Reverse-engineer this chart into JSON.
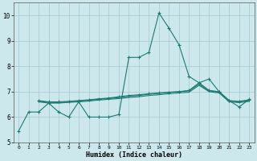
{
  "xlabel": "Humidex (Indice chaleur)",
  "xlim": [
    -0.5,
    23.5
  ],
  "ylim": [
    5.0,
    10.5
  ],
  "yticks": [
    5,
    6,
    7,
    8,
    9,
    10
  ],
  "xticks": [
    0,
    1,
    2,
    3,
    4,
    5,
    6,
    7,
    8,
    9,
    10,
    11,
    12,
    13,
    14,
    15,
    16,
    17,
    18,
    19,
    20,
    21,
    22,
    23
  ],
  "bg_color": "#cce8ec",
  "grid_color": "#aacdd4",
  "line_color": "#1b7b72",
  "line1_x": [
    0,
    1,
    2,
    3,
    4,
    5,
    6,
    7,
    8,
    9,
    10,
    11,
    12,
    13,
    14,
    15,
    16,
    17,
    18,
    19,
    20,
    21,
    22,
    23
  ],
  "line1_y": [
    5.45,
    6.2,
    6.2,
    6.55,
    6.2,
    6.0,
    6.6,
    6.0,
    6.0,
    6.0,
    6.1,
    8.35,
    8.35,
    8.55,
    10.1,
    9.5,
    8.85,
    7.6,
    7.35,
    7.5,
    7.0,
    6.65,
    6.4,
    6.7
  ],
  "line2_x": [
    2,
    3,
    4,
    5,
    6,
    7,
    8,
    9,
    10,
    11,
    12,
    13,
    14,
    15,
    16,
    17,
    18,
    19,
    20,
    21,
    22,
    23
  ],
  "line2_y": [
    6.65,
    6.6,
    6.6,
    6.62,
    6.65,
    6.68,
    6.72,
    6.75,
    6.8,
    6.85,
    6.88,
    6.92,
    6.95,
    6.98,
    7.0,
    7.05,
    7.35,
    7.05,
    7.0,
    6.65,
    6.62,
    6.68
  ],
  "line3_x": [
    2,
    3,
    4,
    5,
    6,
    7,
    8,
    9,
    10,
    11,
    12,
    13,
    14,
    15,
    16,
    17,
    18,
    19,
    20,
    21,
    22,
    23
  ],
  "line3_y": [
    6.62,
    6.58,
    6.57,
    6.6,
    6.63,
    6.66,
    6.7,
    6.73,
    6.77,
    6.82,
    6.85,
    6.9,
    6.93,
    6.97,
    7.0,
    7.03,
    7.3,
    7.03,
    6.98,
    6.63,
    6.6,
    6.65
  ],
  "line4_x": [
    2,
    3,
    4,
    5,
    6,
    7,
    8,
    9,
    10,
    11,
    12,
    13,
    14,
    15,
    16,
    17,
    18,
    19,
    20,
    21,
    22,
    23
  ],
  "line4_y": [
    6.6,
    6.55,
    6.55,
    6.58,
    6.6,
    6.63,
    6.67,
    6.7,
    6.73,
    6.77,
    6.8,
    6.85,
    6.88,
    6.92,
    6.95,
    6.98,
    7.25,
    7.0,
    6.95,
    6.6,
    6.57,
    6.62
  ]
}
